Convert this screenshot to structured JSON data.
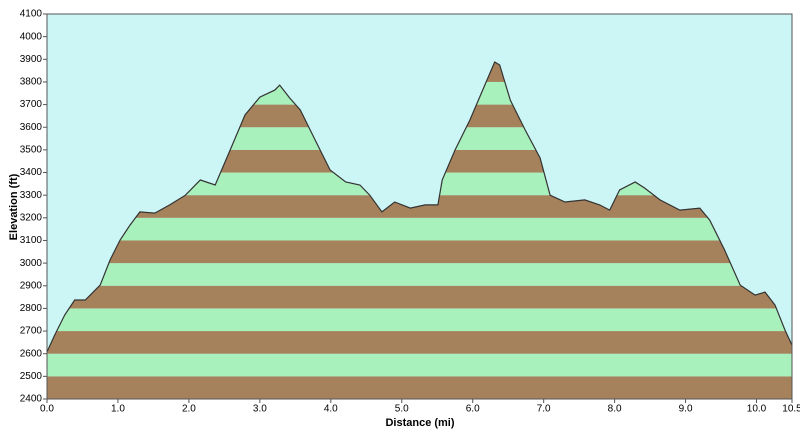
{
  "chart_data": {
    "type": "area",
    "x_label": "Distance   (mi)",
    "y_label": "Elevation (ft)",
    "x": [
      0.0,
      0.11,
      0.25,
      0.39,
      0.54,
      0.68,
      0.75,
      0.89,
      1.03,
      1.17,
      1.31,
      1.52,
      1.73,
      1.95,
      2.16,
      2.37,
      2.58,
      2.79,
      3.0,
      3.21,
      3.28,
      3.42,
      3.57,
      3.78,
      3.99,
      4.21,
      4.41,
      4.55,
      4.72,
      4.9,
      5.12,
      5.33,
      5.51,
      5.57,
      5.75,
      5.96,
      6.17,
      6.31,
      6.38,
      6.53,
      6.74,
      6.95,
      7.09,
      7.3,
      7.58,
      7.79,
      7.93,
      8.07,
      8.29,
      8.42,
      8.64,
      8.92,
      9.2,
      9.34,
      9.55,
      9.77,
      9.98,
      10.12,
      10.26,
      10.4,
      10.5
    ],
    "values": [
      2608,
      2683,
      2771,
      2837,
      2837,
      2881,
      2903,
      3014,
      3102,
      3168,
      3226,
      3221,
      3257,
      3300,
      3367,
      3345,
      3499,
      3654,
      3733,
      3764,
      3786,
      3729,
      3676,
      3543,
      3411,
      3358,
      3345,
      3300,
      3226,
      3270,
      3243,
      3257,
      3257,
      3367,
      3499,
      3632,
      3786,
      3888,
      3875,
      3720,
      3588,
      3464,
      3300,
      3270,
      3279,
      3257,
      3234,
      3323,
      3358,
      3332,
      3279,
      3234,
      3243,
      3190,
      3058,
      2903,
      2859,
      2872,
      2815,
      2705,
      2638
    ],
    "line_color": "#333333",
    "band_colors": [
      "#a6825c",
      "#a8f0bc"
    ],
    "background": "#ccf5f5",
    "xlim": [
      0,
      10.5
    ],
    "ylim": [
      2400,
      4100
    ],
    "xticks": [
      {
        "value": 0,
        "label": "0.0"
      },
      {
        "value": 1,
        "label": "1.0"
      },
      {
        "value": 2,
        "label": "2.0"
      },
      {
        "value": 3,
        "label": "3.0"
      },
      {
        "value": 4,
        "label": "4.0"
      },
      {
        "value": 5,
        "label": "5.0"
      },
      {
        "value": 6,
        "label": "6.0"
      },
      {
        "value": 7,
        "label": "7.0"
      },
      {
        "value": 8,
        "label": "8.0"
      },
      {
        "value": 9,
        "label": "9.0"
      },
      {
        "value": 10,
        "label": "10.0"
      },
      10.5
    ],
    "yticks": [
      2400,
      2500,
      2600,
      2700,
      2800,
      2900,
      3000,
      3100,
      3200,
      3300,
      3400,
      3500,
      3600,
      3700,
      3800,
      3900,
      4000,
      4100
    ]
  }
}
